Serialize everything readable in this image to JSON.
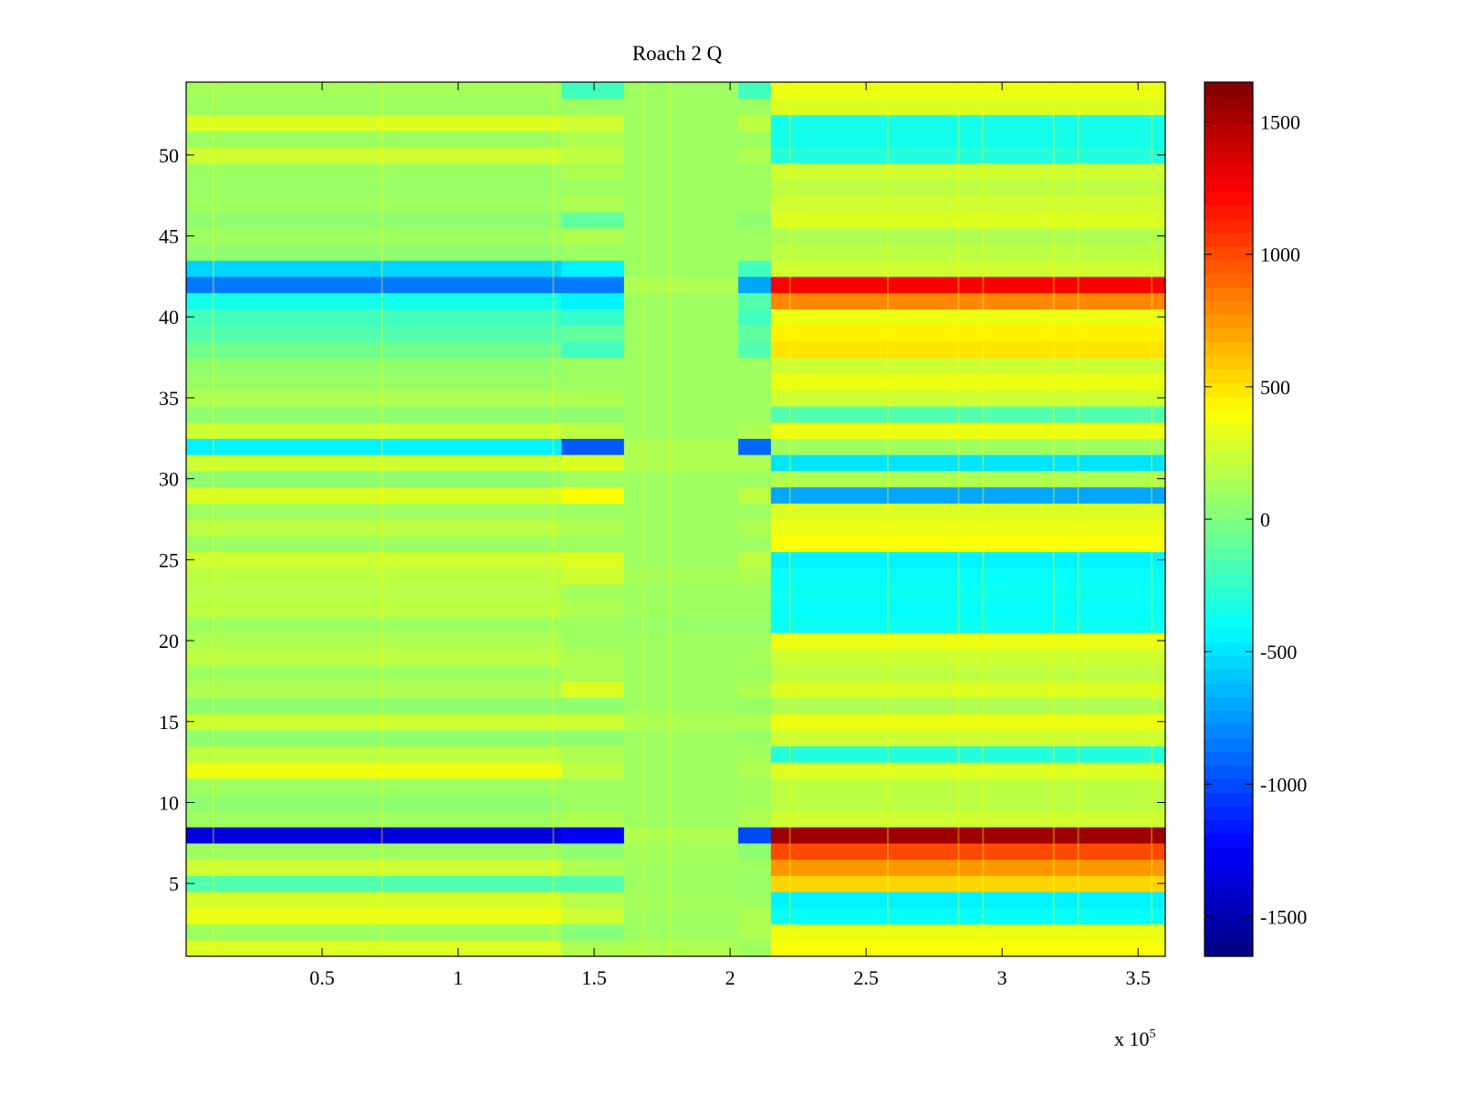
{
  "chart_data": {
    "type": "heatmap",
    "title": "Roach 2 Q",
    "xlabel": "",
    "ylabel": "",
    "x_exponent_label": "x 10",
    "x_exponent": "5",
    "xlim": [
      0,
      360000
    ],
    "ylim": [
      0.5,
      54.5
    ],
    "x_ticks": [
      50000,
      100000,
      150000,
      200000,
      250000,
      300000,
      350000
    ],
    "x_tick_labels": [
      "0.5",
      "1",
      "1.5",
      "2",
      "2.5",
      "3",
      "3.5"
    ],
    "y_ticks": [
      5,
      10,
      15,
      20,
      25,
      30,
      35,
      40,
      45,
      50
    ],
    "y_tick_labels": [
      "5",
      "10",
      "15",
      "20",
      "25",
      "30",
      "35",
      "40",
      "45",
      "50"
    ],
    "colormap": "jet",
    "clim": [
      -1650,
      1650
    ],
    "colorbar_ticks": [
      1500,
      1000,
      500,
      0,
      -500,
      -1000,
      -1500
    ],
    "colorbar_tick_labels": [
      "1500",
      "1000",
      "500",
      "0",
      "-500",
      "-1000",
      "-1500"
    ],
    "x_segments": [
      0,
      138000,
      161000,
      203000,
      215000,
      360000
    ],
    "rows": [
      {
        "y": 1,
        "values": [
          300,
          150,
          150,
          100,
          400
        ]
      },
      {
        "y": 2,
        "values": [
          100,
          20,
          100,
          150,
          350
        ]
      },
      {
        "y": 3,
        "values": [
          350,
          250,
          100,
          150,
          -400
        ]
      },
      {
        "y": 4,
        "values": [
          280,
          180,
          120,
          100,
          -450
        ]
      },
      {
        "y": 5,
        "values": [
          -150,
          -150,
          100,
          80,
          550
        ]
      },
      {
        "y": 6,
        "values": [
          250,
          150,
          100,
          100,
          750
        ]
      },
      {
        "y": 7,
        "values": [
          100,
          50,
          120,
          50,
          1000
        ]
      },
      {
        "y": 8,
        "values": [
          -1350,
          -1250,
          150,
          -1000,
          1550
        ]
      },
      {
        "y": 9,
        "values": [
          100,
          150,
          100,
          150,
          250
        ]
      },
      {
        "y": 10,
        "values": [
          50,
          100,
          100,
          120,
          200
        ]
      },
      {
        "y": 11,
        "values": [
          100,
          100,
          100,
          120,
          200
        ]
      },
      {
        "y": 12,
        "values": [
          350,
          200,
          100,
          150,
          300
        ]
      },
      {
        "y": 13,
        "values": [
          200,
          150,
          100,
          120,
          -300
        ]
      },
      {
        "y": 14,
        "values": [
          50,
          50,
          100,
          80,
          250
        ]
      },
      {
        "y": 15,
        "values": [
          250,
          250,
          150,
          150,
          350
        ]
      },
      {
        "y": 16,
        "values": [
          50,
          50,
          100,
          80,
          150
        ]
      },
      {
        "y": 17,
        "values": [
          150,
          300,
          100,
          150,
          300
        ]
      },
      {
        "y": 18,
        "values": [
          100,
          150,
          100,
          100,
          200
        ]
      },
      {
        "y": 19,
        "values": [
          200,
          150,
          100,
          120,
          250
        ]
      },
      {
        "y": 20,
        "values": [
          150,
          100,
          100,
          100,
          350
        ]
      },
      {
        "y": 21,
        "values": [
          100,
          100,
          80,
          80,
          -380
        ]
      },
      {
        "y": 22,
        "values": [
          200,
          150,
          100,
          100,
          -400
        ]
      },
      {
        "y": 23,
        "values": [
          180,
          120,
          100,
          100,
          -380
        ]
      },
      {
        "y": 24,
        "values": [
          200,
          250,
          120,
          150,
          -400
        ]
      },
      {
        "y": 25,
        "values": [
          250,
          300,
          100,
          200,
          -450
        ]
      },
      {
        "y": 26,
        "values": [
          100,
          100,
          100,
          100,
          400
        ]
      },
      {
        "y": 27,
        "values": [
          200,
          150,
          100,
          150,
          350
        ]
      },
      {
        "y": 28,
        "values": [
          100,
          100,
          100,
          100,
          300
        ]
      },
      {
        "y": 29,
        "values": [
          300,
          400,
          100,
          200,
          -700
        ]
      },
      {
        "y": 30,
        "values": [
          50,
          100,
          100,
          100,
          150
        ]
      },
      {
        "y": 31,
        "values": [
          250,
          300,
          150,
          150,
          -500
        ]
      },
      {
        "y": 32,
        "values": [
          -450,
          -950,
          150,
          -900,
          100
        ]
      },
      {
        "y": 33,
        "values": [
          250,
          200,
          100,
          150,
          350
        ]
      },
      {
        "y": 34,
        "values": [
          50,
          50,
          100,
          100,
          -150
        ]
      },
      {
        "y": 35,
        "values": [
          150,
          150,
          100,
          100,
          250
        ]
      },
      {
        "y": 36,
        "values": [
          80,
          100,
          100,
          100,
          350
        ]
      },
      {
        "y": 37,
        "values": [
          50,
          100,
          100,
          100,
          250
        ]
      },
      {
        "y": 38,
        "values": [
          -50,
          -200,
          100,
          -150,
          500
        ]
      },
      {
        "y": 39,
        "values": [
          -150,
          -100,
          100,
          -100,
          450
        ]
      },
      {
        "y": 40,
        "values": [
          -200,
          -250,
          100,
          -200,
          350
        ]
      },
      {
        "y": 41,
        "values": [
          -350,
          -450,
          100,
          -150,
          800
        ]
      },
      {
        "y": 42,
        "values": [
          -850,
          -850,
          150,
          -700,
          1250
        ]
      },
      {
        "y": 43,
        "values": [
          -550,
          -450,
          100,
          -200,
          250
        ]
      },
      {
        "y": 44,
        "values": [
          50,
          100,
          100,
          100,
          200
        ]
      },
      {
        "y": 45,
        "values": [
          100,
          150,
          100,
          100,
          150
        ]
      },
      {
        "y": 46,
        "values": [
          50,
          -100,
          100,
          50,
          300
        ]
      },
      {
        "y": 47,
        "values": [
          100,
          150,
          100,
          100,
          250
        ]
      },
      {
        "y": 48,
        "values": [
          80,
          100,
          100,
          100,
          200
        ]
      },
      {
        "y": 49,
        "values": [
          100,
          150,
          100,
          100,
          250
        ]
      },
      {
        "y": 50,
        "values": [
          250,
          200,
          100,
          150,
          -300
        ]
      },
      {
        "y": 51,
        "values": [
          100,
          150,
          100,
          100,
          -350
        ]
      },
      {
        "y": 52,
        "values": [
          300,
          250,
          100,
          200,
          -350
        ]
      },
      {
        "y": 53,
        "values": [
          100,
          100,
          100,
          100,
          300
        ]
      },
      {
        "y": 54,
        "values": [
          120,
          -200,
          100,
          -200,
          350
        ]
      }
    ]
  }
}
